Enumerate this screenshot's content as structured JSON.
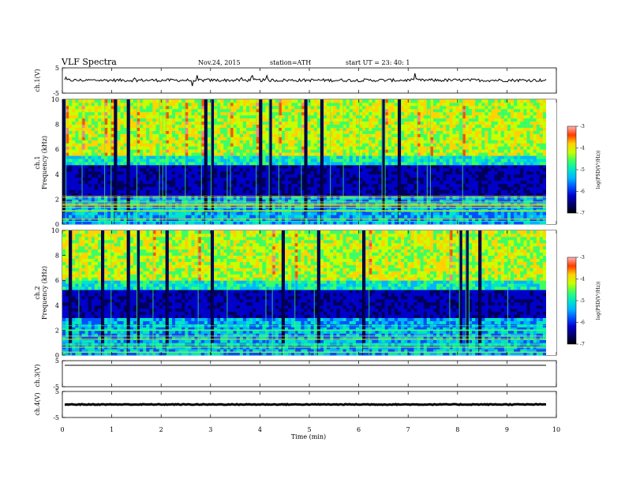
{
  "header": {
    "title": "VLF Spectra",
    "date": "Nov.24, 2015",
    "station": "station=ATH",
    "start": "start  UT =   23: 40: 1"
  },
  "chart_data": [
    {
      "type": "line",
      "panel": "ch.1 waveform",
      "ylabel": "ch.1(V)",
      "yticks": [
        "5",
        "-5"
      ],
      "ylim": [
        -5,
        5
      ],
      "xlim": [
        0,
        10
      ],
      "series": [
        {
          "values_description": "",
          "baseline": 0.1,
          "noise_amplitude": 0.6
        }
      ]
    },
    {
      "type": "heatmap",
      "panel": "ch.1 spectrogram",
      "ylabel": "Frequency (kHz)",
      "channel_label": "ch.1",
      "yticks": [
        "0",
        "2",
        "4",
        "6",
        "8",
        "10"
      ],
      "ylim": [
        0,
        10
      ],
      "xlim": [
        0,
        9.8
      ],
      "colorbar": {
        "label": "log(PSD(V²/Hz))",
        "ticks": [
          "-3",
          "-4",
          "-5",
          "-6",
          "-7"
        ],
        "range": [
          -7,
          -3
        ]
      },
      "quiet_band_khz": [
        2.2,
        4.8
      ],
      "bright_band_khz": [
        5.5,
        10
      ]
    },
    {
      "type": "heatmap",
      "panel": "ch.2 spectrogram",
      "ylabel": "Frequency (kHz)",
      "channel_label": "ch.2",
      "yticks": [
        "0",
        "2",
        "4",
        "6",
        "8",
        "10"
      ],
      "ylim": [
        0,
        10
      ],
      "xlim": [
        0,
        9.8
      ],
      "colorbar": {
        "label": "log(PSD(V²/Hz))",
        "ticks": [
          "-3",
          "-4",
          "-5",
          "-6",
          "-7"
        ],
        "range": [
          -7,
          -3
        ]
      },
      "quiet_band_khz": [
        3.0,
        5.2
      ],
      "bright_band_khz": [
        6.0,
        10
      ]
    },
    {
      "type": "line",
      "panel": "ch.3 waveform",
      "ylabel": "ch.3(V)",
      "yticks": [
        "5",
        "-5"
      ],
      "ylim": [
        -5,
        5
      ],
      "xlim": [
        0,
        10
      ],
      "series": [
        {
          "values_description": "",
          "baseline": 3.2,
          "noise_amplitude": 0
        }
      ]
    },
    {
      "type": "line",
      "panel": "ch.4 waveform",
      "ylabel": "ch.4(V)",
      "yticks": [
        "5",
        "-5"
      ],
      "ylim": [
        -5,
        5
      ],
      "xlim": [
        0,
        10
      ],
      "series": [
        {
          "values_description": "",
          "baseline": 0,
          "noise_amplitude": 0.15
        }
      ]
    }
  ],
  "xaxis": {
    "label": "Time (min)",
    "ticks": [
      "0",
      "1",
      "2",
      "3",
      "4",
      "5",
      "6",
      "7",
      "8",
      "9",
      "10"
    ],
    "range": [
      0,
      10
    ]
  },
  "colors": {
    "spectro_scale": [
      "#000000",
      "#00005a",
      "#0000c8",
      "#0050ff",
      "#00b4ff",
      "#00e6c8",
      "#3cff64",
      "#c8ff00",
      "#ffd200",
      "#ff5000",
      "#ff8080"
    ],
    "frame": "#000000"
  }
}
